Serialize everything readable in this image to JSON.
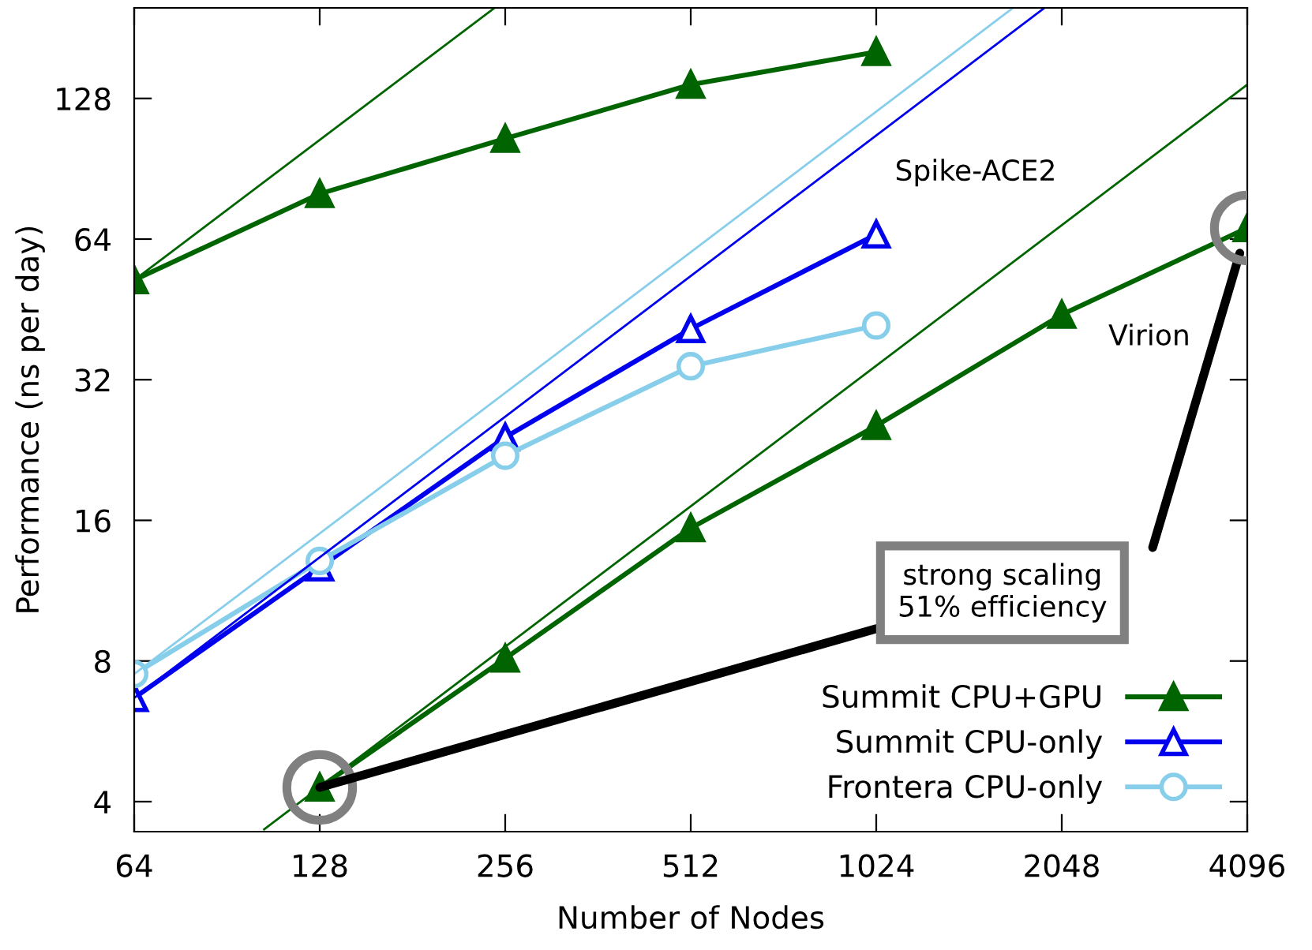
{
  "chart_data": {
    "type": "line",
    "xlabel": "Number of Nodes",
    "ylabel": "Performance (ns per day)",
    "log": "xy",
    "xlim": [
      64,
      4096
    ],
    "xticks": [
      64,
      128,
      256,
      512,
      1024,
      2048,
      4096
    ],
    "ylim": [
      3.45,
      200
    ],
    "yticks": [
      4,
      8,
      16,
      32,
      64,
      128
    ],
    "grid": false,
    "legend": "bottom right",
    "series": [
      {
        "name": "Summit CPU+GPU",
        "color": "#006400",
        "marker": "triangle",
        "x": [
          64,
          128,
          256,
          512,
          1024
        ],
        "values": [
          52.3,
          80,
          105,
          137,
          161
        ]
      },
      {
        "name": "Summit CPU-only",
        "color": "#0000ee",
        "marker": "triangle",
        "x": [
          64,
          128,
          256,
          512,
          1024
        ],
        "values": [
          6.67,
          12.7,
          24.1,
          41.1,
          65.5
        ]
      },
      {
        "name": "Frontera CPU-only",
        "color": "#87ceeb",
        "marker": "circle",
        "x": [
          64,
          128,
          256,
          512,
          1024
        ],
        "values": [
          7.5,
          13.1,
          22.0,
          34.2,
          41.8
        ]
      },
      {
        "color": "#006400",
        "marker": "triangle",
        "x": [
          128,
          256,
          512,
          1024,
          2048,
          4096
        ],
        "values": [
          4.29,
          8.1,
          15.4,
          25.5,
          44.1,
          67.6
        ]
      },
      {
        "color": "#006400",
        "marker": "none",
        "x": [
          64,
          246
        ],
        "values": [
          52.3,
          200
        ]
      },
      {
        "color": "#0000ee",
        "marker": "none",
        "x": [
          64,
          1920
        ],
        "values": [
          6.67,
          200
        ]
      },
      {
        "color": "#87ceeb",
        "marker": "none",
        "x": [
          64,
          1707
        ],
        "values": [
          7.5,
          200
        ]
      },
      {
        "color": "#006400",
        "marker": "none",
        "x": [
          104,
          4096
        ],
        "values": [
          3.49,
          137
        ]
      }
    ],
    "annotations": [
      "Spike-ACE2",
      "Virion",
      {
        "text": "strong scaling\n51% efficiency",
        "x": 128,
        "y": 4.29
      }
    ]
  }
}
